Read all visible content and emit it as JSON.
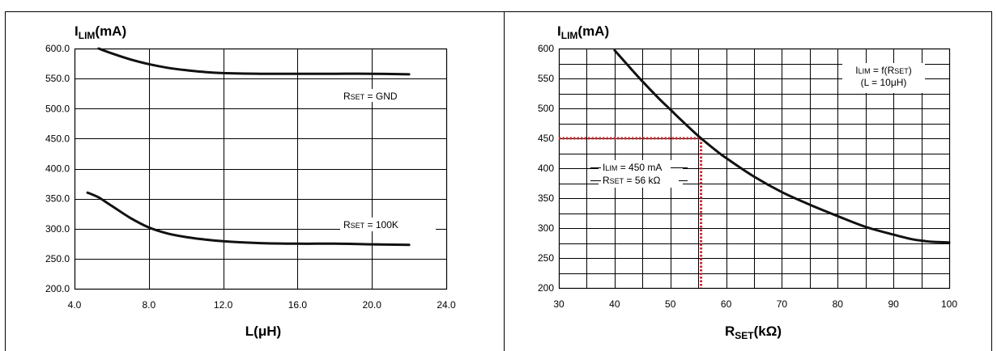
{
  "chart_data": [
    {
      "type": "line",
      "title": "",
      "ylabel": {
        "main": "I",
        "sub": "LIM",
        "rest": "(mA)"
      },
      "xlabel": "L(μH)",
      "xlim": [
        4.0,
        24.0
      ],
      "ylim": [
        200.0,
        600.0
      ],
      "x_ticks": [
        "4.0",
        "8.0",
        "12.0",
        "16.0",
        "20.0",
        "24.0"
      ],
      "y_ticks": [
        "200.0",
        "250.0",
        "300.0",
        "350.0",
        "400.0",
        "450.0",
        "500.0",
        "550.0",
        "600.0"
      ],
      "grid": "major",
      "series": [
        {
          "name": "RSET = GND",
          "label": {
            "pre": "R",
            "sub": "SET",
            "post": " = GND"
          },
          "x": [
            5.3,
            6.0,
            7.0,
            8.0,
            9.0,
            10.0,
            11.0,
            12.0,
            14.0,
            16.0,
            18.0,
            20.0,
            22.0
          ],
          "y": [
            600,
            592,
            582,
            574,
            568,
            564,
            561,
            559,
            558,
            558,
            558,
            558,
            557
          ]
        },
        {
          "name": "RSET = 100K",
          "label": {
            "pre": "R",
            "sub": "SET",
            "post": " = 100K"
          },
          "x": [
            4.7,
            5.3,
            6.0,
            7.0,
            8.0,
            9.0,
            10.0,
            11.0,
            12.0,
            14.0,
            16.0,
            18.0,
            20.0,
            22.0
          ],
          "y": [
            360,
            352,
            338,
            318,
            302,
            292,
            286,
            282,
            279,
            276,
            275,
            275,
            274,
            273
          ]
        }
      ]
    },
    {
      "type": "line",
      "title": "",
      "ylabel": {
        "main": "I",
        "sub": "LIM",
        "rest": "(mA)"
      },
      "xlabel": {
        "main": "R",
        "sub": "SET",
        "rest": "(kΩ)"
      },
      "xlim": [
        30,
        100
      ],
      "ylim": [
        200,
        600
      ],
      "x_ticks": [
        "30",
        "40",
        "50",
        "60",
        "70",
        "80",
        "90",
        "100"
      ],
      "y_ticks": [
        "200",
        "250",
        "300",
        "350",
        "400",
        "450",
        "500",
        "550",
        "600"
      ],
      "grid": "minor",
      "legend": {
        "line1": {
          "pre": "I",
          "sub": "LIM",
          "mid": " = f(R",
          "sub2": "SET",
          "post": ")"
        },
        "line2": "(L = 10μH)",
        "position": "top-right"
      },
      "series": [
        {
          "name": "ILIM = f(RSET)",
          "x": [
            40,
            42,
            45,
            48,
            50,
            52,
            55,
            58,
            60,
            65,
            70,
            75,
            80,
            85,
            90,
            93,
            95,
            97,
            100
          ],
          "y": [
            597,
            576,
            545,
            516,
            498,
            480,
            454,
            431,
            417,
            386,
            360,
            339,
            320,
            302,
            289,
            282,
            279,
            277,
            276
          ]
        }
      ],
      "marker": {
        "x": 55.5,
        "y": 450,
        "color": "#d2232a",
        "label1": {
          "pre": "I",
          "sub": "LIM",
          "post": " = 450 mA"
        },
        "label2": {
          "pre": "R",
          "sub": "SET",
          "post": " = 56 kΩ"
        }
      }
    }
  ]
}
